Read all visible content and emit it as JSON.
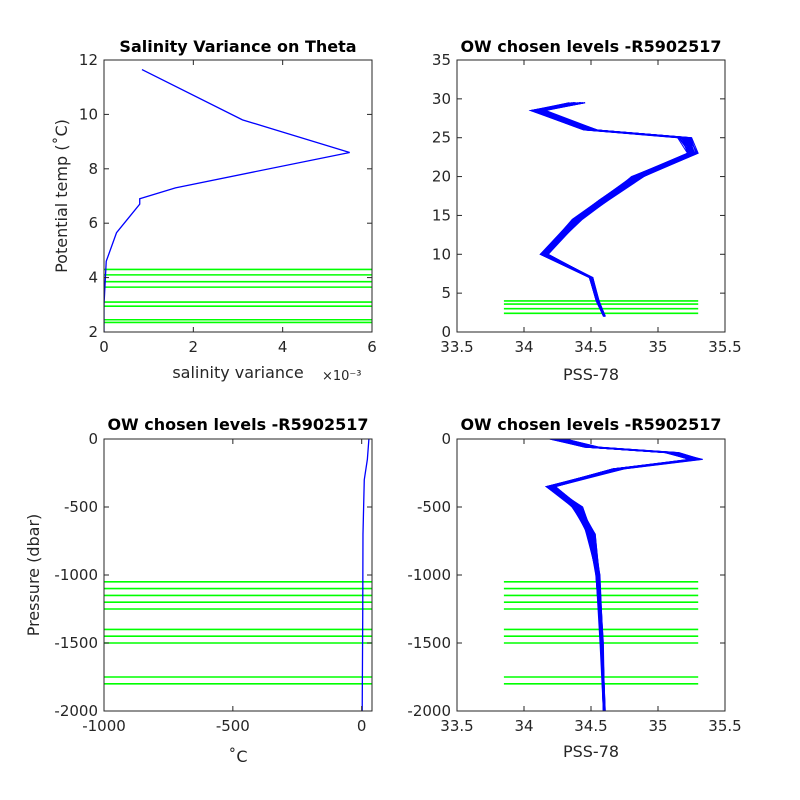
{
  "colors": {
    "profile": "#0000ff",
    "levels": "#00ff00",
    "axis": "#262626"
  },
  "chart_data": [
    {
      "id": "p1",
      "type": "line",
      "title": "Salinity Variance on Theta",
      "xlabel": "salinity variance",
      "xexponent": "×10⁻³",
      "ylabel": "Potential temp (˚C)",
      "xlim": [
        0,
        6
      ],
      "ylim": [
        2,
        12
      ],
      "xticks": [
        0,
        2,
        4,
        6
      ],
      "xticklabels": [
        "0",
        "2",
        "4",
        "6"
      ],
      "yticks": [
        2,
        4,
        6,
        8,
        10,
        12
      ],
      "yticklabels": [
        "2",
        "4",
        "6",
        "8",
        "10",
        "12"
      ],
      "series": [
        {
          "role": "profile",
          "x": [
            0.85,
            3.1,
            5.5,
            1.6,
            0.8,
            0.8,
            0.28,
            0.05,
            0.0,
            0.0
          ],
          "y": [
            11.65,
            9.8,
            8.6,
            7.3,
            6.9,
            6.7,
            5.65,
            4.6,
            3.0,
            2.0
          ]
        }
      ],
      "levels": [
        4.3,
        4.1,
        3.85,
        3.65,
        3.1,
        2.95,
        2.45,
        2.35
      ],
      "levels_x": [
        0,
        6
      ]
    },
    {
      "id": "p2",
      "type": "line",
      "title": "OW chosen levels -R5902517",
      "xlabel": "PSS-78",
      "ylabel": "",
      "xlim": [
        33.5,
        35.5
      ],
      "ylim": [
        0,
        35
      ],
      "xticks": [
        33.5,
        34,
        34.5,
        35,
        35.5
      ],
      "xticklabels": [
        "33.5",
        "34",
        "34.5",
        "35",
        "35.5"
      ],
      "yticks": [
        0,
        5,
        10,
        15,
        20,
        25,
        30,
        35
      ],
      "yticklabels": [
        "0",
        "5",
        "10",
        "15",
        "20",
        "25",
        "30",
        "35"
      ],
      "series": [
        {
          "role": "profile-bundle",
          "x": [
            34.4,
            34.1,
            34.5,
            35.2,
            35.25,
            34.85,
            34.6,
            34.4,
            34.15,
            34.5,
            34.55,
            34.6
          ],
          "y": [
            29.5,
            28.5,
            26,
            25,
            23,
            20,
            17,
            14.5,
            10,
            7,
            4,
            2
          ]
        }
      ],
      "levels": [
        4,
        3.6,
        3,
        2.4
      ],
      "levels_x": [
        33.85,
        35.3
      ]
    },
    {
      "id": "p3",
      "type": "line",
      "title": "OW chosen levels -R5902517",
      "xlabel": "˚C",
      "ylabel": "Pressure (dbar)",
      "xlim": [
        -1000,
        40
      ],
      "ylim": [
        -2000,
        0
      ],
      "xticks": [
        -1000,
        -500,
        0
      ],
      "xticklabels": [
        "-1000",
        "-500",
        "0"
      ],
      "yticks": [
        -2000,
        -1500,
        -1000,
        -500,
        0
      ],
      "yticklabels": [
        "-2000",
        "-1500",
        "-1000",
        "-500",
        "0"
      ],
      "series": [
        {
          "role": "profile",
          "x": [
            28,
            22,
            10,
            5,
            4,
            2
          ],
          "y": [
            0,
            -150,
            -300,
            -700,
            -1300,
            -2000
          ]
        }
      ],
      "levels": [
        -1050,
        -1100,
        -1150,
        -1200,
        -1250,
        -1400,
        -1450,
        -1500,
        -1750,
        -1800
      ],
      "levels_x": [
        -1000,
        40
      ]
    },
    {
      "id": "p4",
      "type": "line",
      "title": "OW chosen levels -R5902517",
      "xlabel": "PSS-78",
      "ylabel": "",
      "xlim": [
        33.5,
        35.5
      ],
      "ylim": [
        -2000,
        0
      ],
      "xticks": [
        33.5,
        34,
        34.5,
        35,
        35.5
      ],
      "xticklabels": [
        "33.5",
        "34",
        "34.5",
        "35",
        "35.5"
      ],
      "yticks": [
        -2000,
        -1500,
        -1000,
        -500,
        0
      ],
      "yticklabels": [
        "-2000",
        "-1500",
        "-1000",
        "-500",
        "0"
      ],
      "series": [
        {
          "role": "profile-bundle",
          "x": [
            34.25,
            34.5,
            35.1,
            35.28,
            34.7,
            34.2,
            34.4,
            34.5,
            34.55,
            34.58,
            34.6
          ],
          "y": [
            0,
            -60,
            -100,
            -150,
            -220,
            -350,
            -500,
            -700,
            -1000,
            -1500,
            -2000
          ]
        }
      ],
      "levels": [
        -1050,
        -1100,
        -1150,
        -1200,
        -1250,
        -1400,
        -1450,
        -1500,
        -1750,
        -1800
      ],
      "levels_x": [
        33.85,
        35.3
      ]
    }
  ]
}
